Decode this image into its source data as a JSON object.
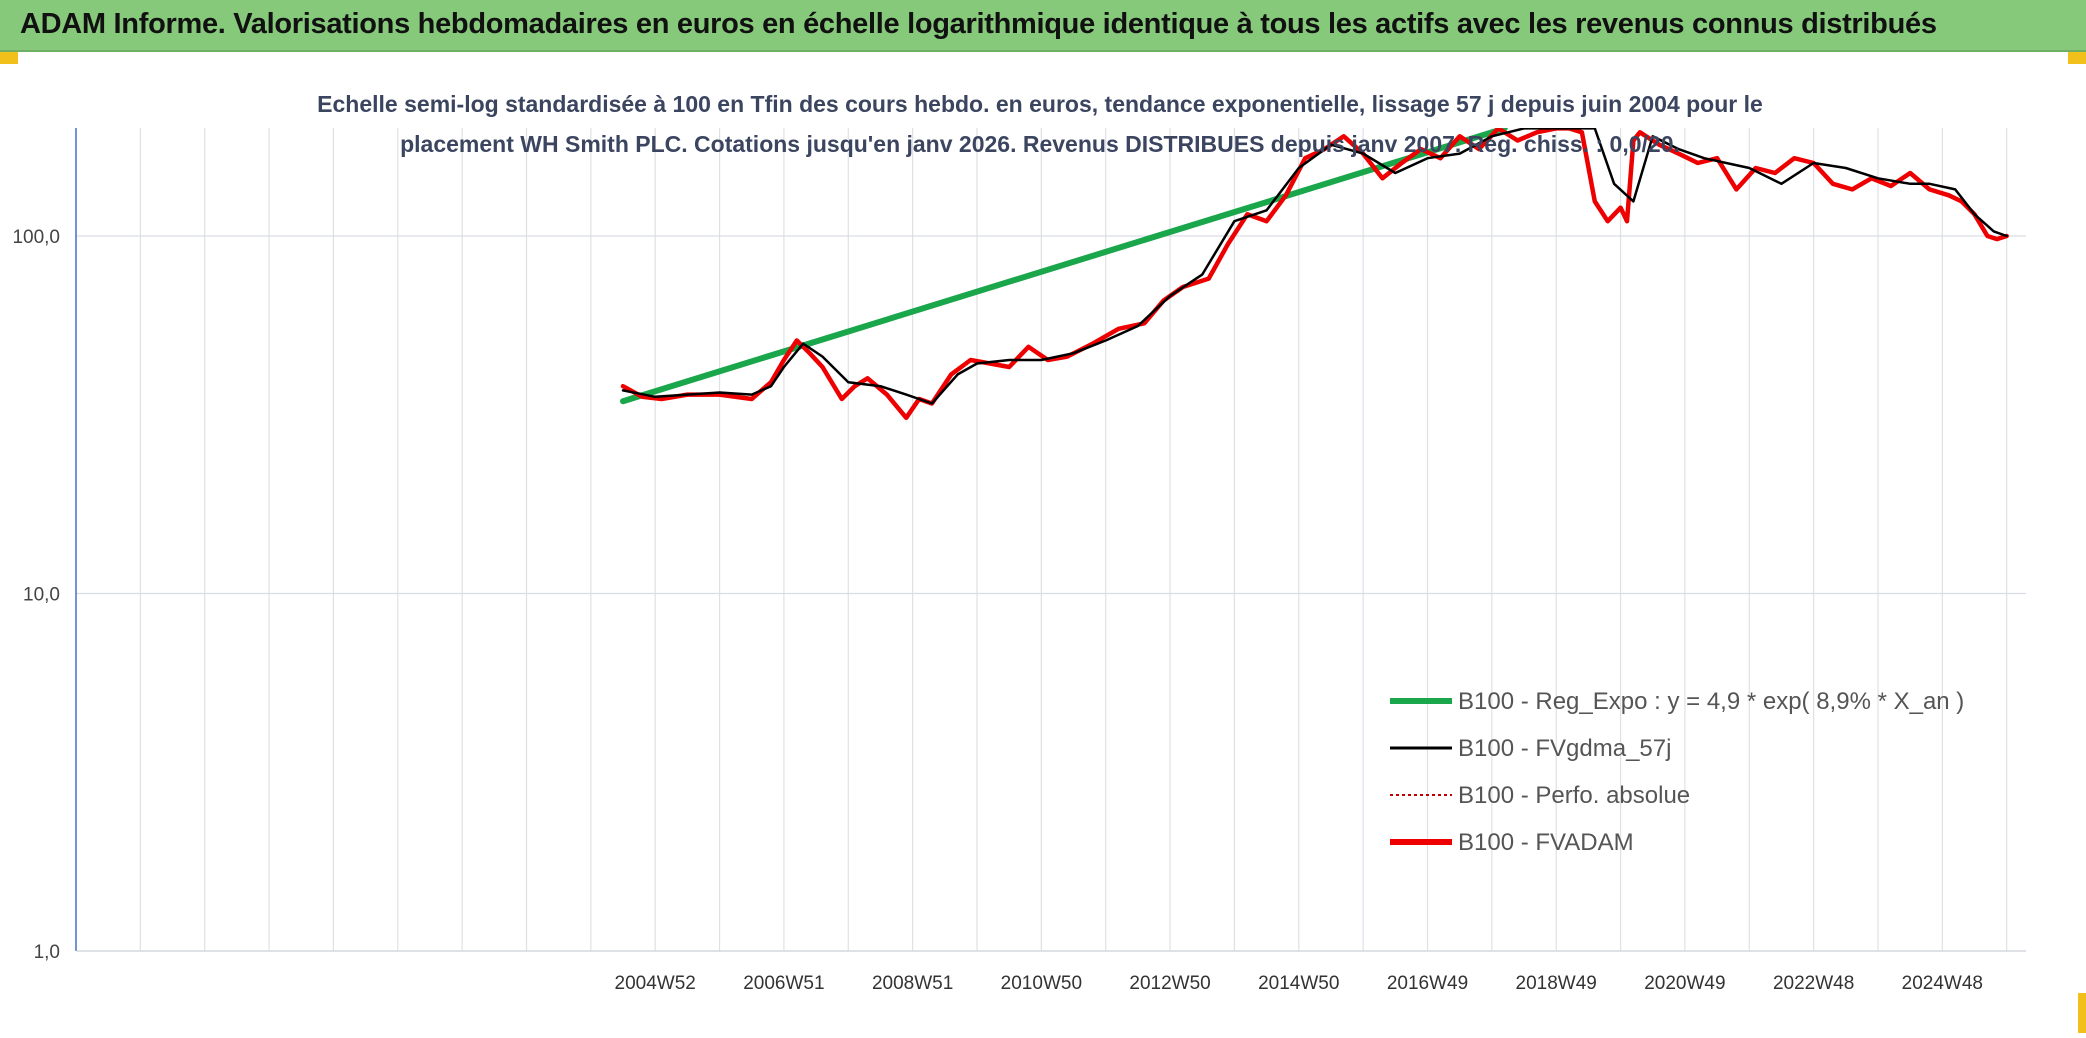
{
  "banner": {
    "title": "ADAM Informe. Valorisations hebdomadaires en euros en échelle logarithmique identique à tous les actifs avec les revenus connus distribués"
  },
  "colors": {
    "banner_bg": "#86c97a",
    "corner_accent": "#f2c01a",
    "regression": "#1aa64a",
    "moving_average": "#000000",
    "perfo_absolue": "#c00000",
    "fvadam": "#ee0000"
  },
  "chart_data": {
    "type": "line",
    "title": "Echelle semi-log standardisée à 100 en Tfin des cours hebdo. en euros, tendance exponentielle, lissage 57 j depuis juin 2004 pour le placement WH Smith PLC. Cotations jusqu'en janv 2026. Revenus DISTRIBUES depuis janv 2007. Reg. chiss. : 0,0/20.",
    "title_lines": [
      "Echelle semi-log standardisée à 100 en Tfin des cours hebdo. en euros, tendance exponentielle, lissage 57 j depuis juin 2004 pour le",
      "placement WH Smith PLC. Cotations jusqu'en janv 2026. Revenus DISTRIBUES depuis janv 2007. Reg. chiss. : 0,0/20."
    ],
    "xlabel": "",
    "ylabel": "",
    "y_scale": "log",
    "ylim": [
      1,
      200
    ],
    "y_ticks": [
      {
        "value": 1,
        "label": "1,0"
      },
      {
        "value": 10,
        "label": "10,0"
      },
      {
        "value": 100,
        "label": "100,0"
      }
    ],
    "xlim": [
      1996.0,
      2026.3
    ],
    "x_ticks": [
      {
        "value": 2005.0,
        "label": "2004W52"
      },
      {
        "value": 2007.0,
        "label": "2006W51"
      },
      {
        "value": 2009.0,
        "label": "2008W51"
      },
      {
        "value": 2011.0,
        "label": "2010W50"
      },
      {
        "value": 2013.0,
        "label": "2012W50"
      },
      {
        "value": 2015.0,
        "label": "2014W50"
      },
      {
        "value": 2017.0,
        "label": "2016W49"
      },
      {
        "value": 2019.0,
        "label": "2018W49"
      },
      {
        "value": 2021.0,
        "label": "2020W49"
      },
      {
        "value": 2023.0,
        "label": "2022W48"
      },
      {
        "value": 2025.0,
        "label": "2024W48"
      }
    ],
    "grid": true,
    "legend_position": "bottom-right",
    "series": [
      {
        "name": "B100 - Reg_Expo : y = 4,9 * exp( 8,9% *  X_an )",
        "style": "solid-thick",
        "x": [
          2004.5,
          2018.2
        ],
        "y": [
          34.5,
          200
        ]
      },
      {
        "name": "B100 - FVgdma_57j",
        "style": "solid-thin",
        "x": [
          2004.5,
          2005.0,
          2005.5,
          2006.0,
          2006.5,
          2006.8,
          2007.0,
          2007.3,
          2007.6,
          2008.0,
          2008.5,
          2008.9,
          2009.3,
          2009.7,
          2010.0,
          2010.5,
          2011.0,
          2011.5,
          2012.0,
          2012.5,
          2013.0,
          2013.5,
          2014.0,
          2014.5,
          2015.0,
          2015.5,
          2016.0,
          2016.5,
          2017.0,
          2017.5,
          2018.0,
          2018.5,
          2019.0,
          2019.3,
          2019.6,
          2019.9,
          2020.2,
          2020.5,
          2020.9,
          2021.3,
          2022.0,
          2022.5,
          2023.0,
          2023.5,
          2024.0,
          2024.5,
          2024.8,
          2025.2,
          2025.5,
          2025.8,
          2026.0
        ],
        "y": [
          37,
          35.5,
          36,
          36.5,
          36,
          38,
          43,
          50,
          46,
          39,
          38,
          36,
          34,
          41,
          44,
          45,
          45,
          47,
          51,
          56,
          68,
          78,
          110,
          118,
          155,
          180,
          170,
          150,
          165,
          170,
          190,
          200,
          200,
          200,
          200,
          140,
          125,
          190,
          175,
          165,
          155,
          140,
          160,
          155,
          145,
          140,
          140,
          135,
          115,
          103,
          100
        ]
      },
      {
        "name": "B100 - Perfo. absolue",
        "style": "dotted",
        "x": [],
        "y": []
      },
      {
        "name": "B100 - FVADAM",
        "style": "solid-thick",
        "x": [
          2004.5,
          2004.8,
          2005.1,
          2005.5,
          2006.0,
          2006.5,
          2006.8,
          2007.0,
          2007.2,
          2007.4,
          2007.6,
          2007.9,
          2008.1,
          2008.3,
          2008.6,
          2008.9,
          2009.1,
          2009.3,
          2009.6,
          2009.9,
          2010.2,
          2010.5,
          2010.8,
          2011.1,
          2011.4,
          2011.8,
          2012.2,
          2012.6,
          2012.9,
          2013.2,
          2013.6,
          2013.9,
          2014.2,
          2014.5,
          2014.8,
          2015.1,
          2015.4,
          2015.7,
          2016.0,
          2016.3,
          2016.6,
          2016.9,
          2017.2,
          2017.5,
          2017.8,
          2018.1,
          2018.4,
          2018.7,
          2019.0,
          2019.2,
          2019.4,
          2019.6,
          2019.8,
          2020.0,
          2020.1,
          2020.2,
          2020.3,
          2020.6,
          2020.9,
          2021.2,
          2021.5,
          2021.8,
          2022.1,
          2022.4,
          2022.7,
          2023.0,
          2023.3,
          2023.6,
          2023.9,
          2024.2,
          2024.5,
          2024.8,
          2025.1,
          2025.3,
          2025.5,
          2025.7,
          2025.85,
          2026.0
        ],
        "y": [
          38,
          35.5,
          35,
          36,
          36,
          35,
          39,
          45,
          51,
          47,
          43,
          35,
          38,
          40,
          36,
          31,
          35,
          34,
          41,
          45,
          44,
          43,
          49,
          45,
          46,
          50,
          55,
          57,
          66,
          72,
          76,
          95,
          115,
          110,
          130,
          165,
          175,
          190,
          170,
          145,
          160,
          175,
          165,
          190,
          175,
          200,
          185,
          195,
          200,
          200,
          195,
          125,
          110,
          120,
          110,
          185,
          195,
          180,
          170,
          160,
          165,
          135,
          155,
          150,
          165,
          160,
          140,
          135,
          145,
          138,
          150,
          135,
          130,
          125,
          115,
          100,
          98,
          100
        ]
      }
    ]
  }
}
